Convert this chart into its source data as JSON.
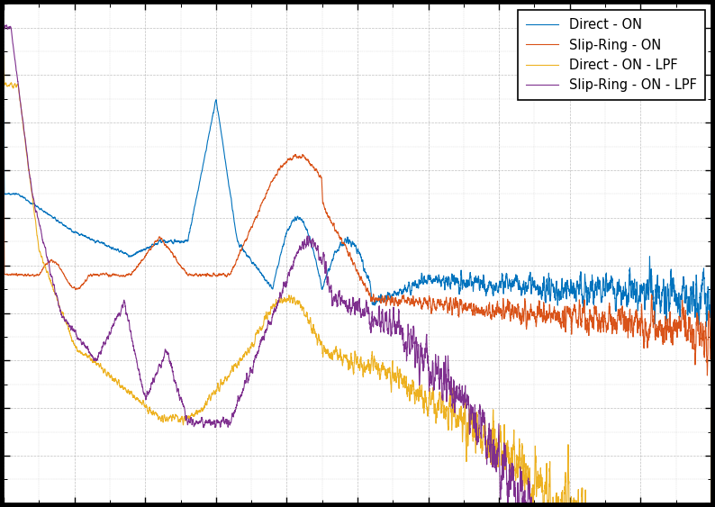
{
  "legend_entries": [
    "Direct - ON",
    "Slip-Ring - ON",
    "Direct - ON - LPF",
    "Slip-Ring - ON - LPF"
  ],
  "line_colors": [
    "#0072BD",
    "#D95319",
    "#EDB120",
    "#7E2F8E"
  ],
  "background_color": "#FFFFFF",
  "figure_bg": "#000000",
  "grid_color": "#B0B0B0",
  "seed": 1234,
  "N": 5000,
  "xmin": 0.0,
  "xmax": 1.0,
  "ymin": -1.0,
  "ymax": 0.0
}
